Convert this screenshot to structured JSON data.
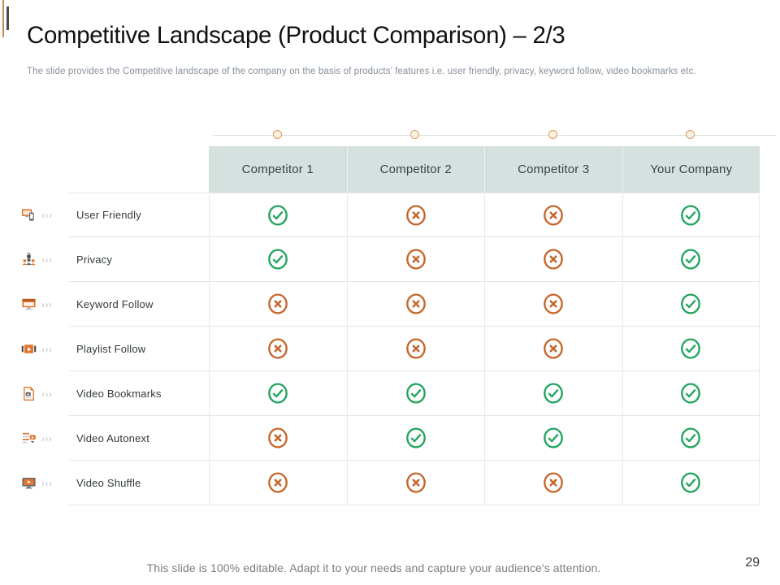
{
  "slide": {
    "title": "Competitive Landscape (Product Comparison) – 2/3",
    "subtitle": "The slide provides the Competitive landscape of the company on the basis of products’ features i.e. user friendly, privacy,  keyword follow, video bookmarks etc.",
    "footer": "This slide is 100% editable. Adapt it to your needs and capture your audience's attention.",
    "page_number": "29"
  },
  "table": {
    "columns": [
      "Competitor 1",
      "Competitor 2",
      "Competitor 3",
      "Your Company"
    ],
    "rows": [
      {
        "feature": "User Friendly",
        "icon": "user-friendly-icon",
        "values": [
          "yes",
          "no",
          "no",
          "yes"
        ]
      },
      {
        "feature": "Privacy",
        "icon": "privacy-icon",
        "values": [
          "yes",
          "no",
          "no",
          "yes"
        ]
      },
      {
        "feature": "Keyword Follow",
        "icon": "keyword-follow-icon",
        "values": [
          "no",
          "no",
          "no",
          "yes"
        ]
      },
      {
        "feature": "Playlist Follow",
        "icon": "playlist-follow-icon",
        "values": [
          "no",
          "no",
          "no",
          "yes"
        ]
      },
      {
        "feature": "Video Bookmarks",
        "icon": "video-bookmarks-icon",
        "values": [
          "yes",
          "yes",
          "yes",
          "yes"
        ]
      },
      {
        "feature": "Video Autonext",
        "icon": "video-autonext-icon",
        "values": [
          "no",
          "yes",
          "yes",
          "yes"
        ]
      },
      {
        "feature": "Video Shuffle",
        "icon": "video-shuffle-icon",
        "values": [
          "no",
          "no",
          "no",
          "yes"
        ]
      }
    ]
  },
  "colors": {
    "check_green": "#21a45e",
    "cross_orange": "#c5662a",
    "header_bg": "#d4e1df",
    "accent_orange": "#e0762f",
    "timeline_dot_border": "#d99a60"
  }
}
